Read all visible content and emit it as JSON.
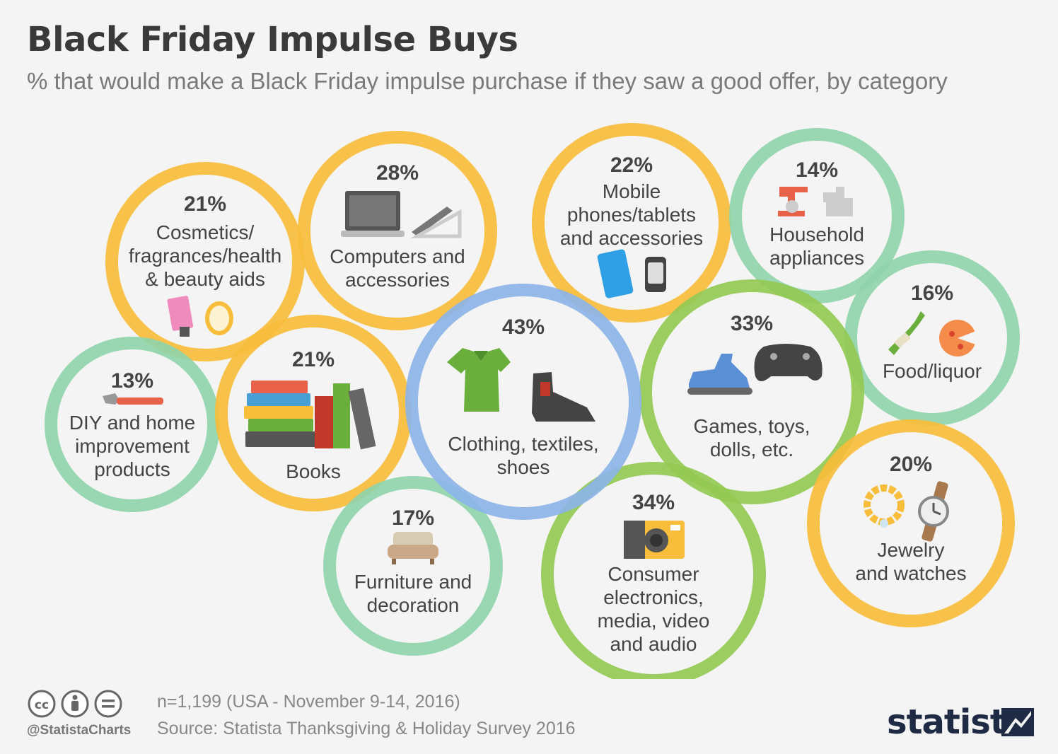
{
  "colors": {
    "yellow": "#f7bd3b",
    "teal": "#8fd4aa",
    "green": "#94c954",
    "blue": "#8cb4e8",
    "label": "#444444",
    "brand": "#1f2a44"
  },
  "chart_data": {
    "type": "bubble",
    "title": "Black Friday Impulse Buys",
    "subtitle": "% that would make a Black Friday impulse purchase if they saw a good offer, by category",
    "unit": "%",
    "items": [
      {
        "id": "cosmetics",
        "value": 21,
        "value_label": "21%",
        "label_lines": [
          "Cosmetics/",
          "fragrances/health",
          "& beauty aids"
        ],
        "color": "yellow",
        "icon": "lotion-mirror-icon"
      },
      {
        "id": "computers",
        "value": 28,
        "value_label": "28%",
        "label_lines": [
          "Computers and",
          "accessories"
        ],
        "color": "yellow",
        "icon": "laptop-icon"
      },
      {
        "id": "mobile",
        "value": 22,
        "value_label": "22%",
        "label_lines": [
          "Mobile",
          "phones/tablets",
          "and accessories"
        ],
        "color": "yellow",
        "icon": "phone-watch-icon"
      },
      {
        "id": "household",
        "value": 14,
        "value_label": "14%",
        "label_lines": [
          "Household",
          "appliances"
        ],
        "color": "teal",
        "icon": "mixer-icon"
      },
      {
        "id": "food",
        "value": 16,
        "value_label": "16%",
        "label_lines": [
          "Food/liquor"
        ],
        "color": "teal",
        "icon": "bottle-pizza-icon"
      },
      {
        "id": "diy",
        "value": 13,
        "value_label": "13%",
        "label_lines": [
          "DIY and home",
          "improvement",
          "products"
        ],
        "color": "teal",
        "icon": "wrench-icon"
      },
      {
        "id": "books",
        "value": 21,
        "value_label": "21%",
        "label_lines": [
          "Books"
        ],
        "color": "yellow",
        "icon": "books-icon"
      },
      {
        "id": "clothing",
        "value": 43,
        "value_label": "43%",
        "label_lines": [
          "Clothing, textiles,",
          "shoes"
        ],
        "color": "blue",
        "icon": "shirt-boot-icon"
      },
      {
        "id": "games",
        "value": 33,
        "value_label": "33%",
        "label_lines": [
          "Games, toys,",
          "dolls, etc."
        ],
        "color": "green",
        "icon": "toy-gamepad-icon"
      },
      {
        "id": "furniture",
        "value": 17,
        "value_label": "17%",
        "label_lines": [
          "Furniture and",
          "decoration"
        ],
        "color": "teal",
        "icon": "sofa-icon"
      },
      {
        "id": "electronics",
        "value": 34,
        "value_label": "34%",
        "label_lines": [
          "Consumer",
          "electronics,",
          "media, video",
          "and audio"
        ],
        "color": "green",
        "icon": "camera-icon"
      },
      {
        "id": "jewelry",
        "value": 20,
        "value_label": "20%",
        "label_lines": [
          "Jewelry",
          "and watches"
        ],
        "color": "yellow",
        "icon": "bracelet-watch-icon"
      }
    ]
  },
  "footer": {
    "note": "n=1,199 (USA - November 9-14, 2016)",
    "source": "Source: Statista Thanksgiving & Holiday Survey 2016",
    "handle": "@StatistaCharts",
    "brand": "statista",
    "license_icons": [
      "cc-icon",
      "by-icon",
      "nd-icon"
    ]
  }
}
